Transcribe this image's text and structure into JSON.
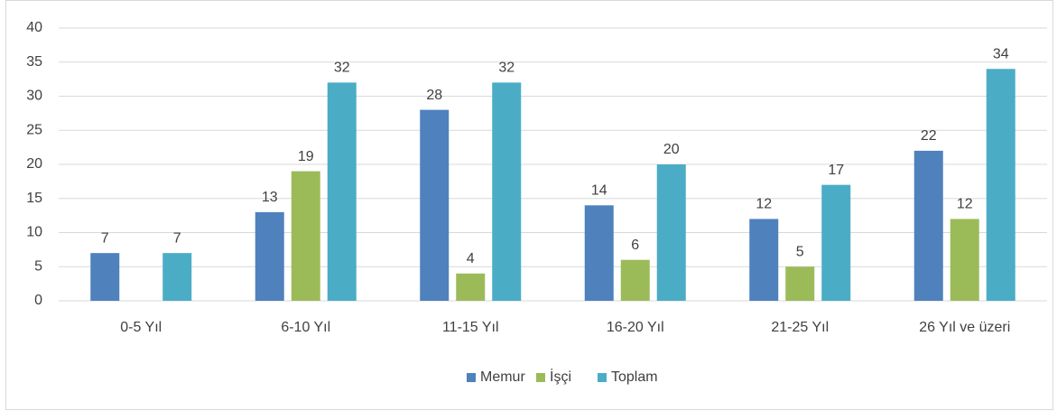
{
  "chart_data": {
    "type": "bar",
    "categories": [
      "0-5 Yıl",
      "6-10 Yıl",
      "11-15 Yıl",
      "16-20 Yıl",
      "21-25 Yıl",
      "26 Yıl ve üzeri"
    ],
    "series": [
      {
        "name": "Memur",
        "color": "#4f81bd",
        "values": [
          7,
          13,
          28,
          14,
          12,
          22
        ]
      },
      {
        "name": "İşçi",
        "color": "#9bbb59",
        "values": [
          null,
          19,
          4,
          6,
          5,
          12
        ]
      },
      {
        "name": "Toplam",
        "color": "#4bacc6",
        "values": [
          7,
          32,
          32,
          20,
          17,
          34
        ]
      }
    ],
    "ylim": [
      0,
      40
    ],
    "yticks": [
      0,
      5,
      10,
      15,
      20,
      25,
      30,
      35,
      40
    ],
    "grid": true,
    "legend": "bottom"
  }
}
